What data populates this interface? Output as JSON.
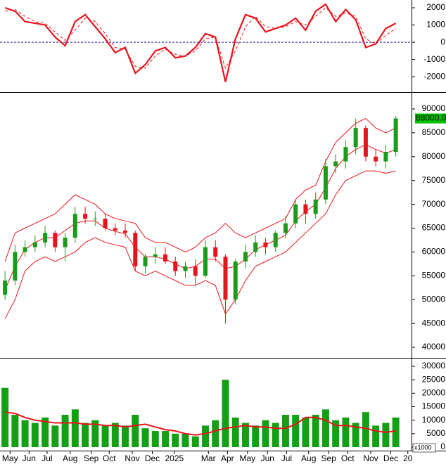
{
  "chart_data": [
    {
      "type": "line",
      "x": [
        0.5,
        1.5,
        2.5,
        3.5,
        4.5,
        5.5,
        6.5,
        7.5,
        8.5,
        9.5,
        10.5,
        11.5,
        12.5,
        13.5,
        14.5,
        15.5,
        16.5,
        17.5,
        18.5,
        19.5,
        20.5,
        21.5,
        22.5,
        23.5,
        24.5,
        25.5,
        26.5,
        27.5,
        28.5,
        29.5,
        30.5,
        31.5,
        32.5,
        33.5,
        34.5,
        35.5,
        36.5,
        37.5,
        38.5,
        39.5
      ],
      "xlim": [
        0,
        41
      ],
      "ylim": [
        -2850,
        2450
      ],
      "yticks": [
        -2000,
        -1000,
        0,
        1000,
        2000
      ],
      "hline": 0,
      "hline_color": "#1f1fb0",
      "series": [
        {
          "name": "MACD",
          "color": "#e8141c",
          "dashed": false,
          "values": [
            2000,
            1800,
            1200,
            1100,
            1000,
            300,
            -200,
            1200,
            1600,
            900,
            200,
            -600,
            -300,
            -1800,
            -1300,
            -500,
            -300,
            -900,
            -800,
            -300,
            500,
            300,
            -2300,
            200,
            1600,
            1400,
            600,
            800,
            1000,
            1400,
            700,
            1800,
            2200,
            1200,
            1900,
            1300,
            -300,
            -100,
            800,
            1100
          ]
        },
        {
          "name": "Signal",
          "color": "#e8141c",
          "dashed": true,
          "values": [
            1800,
            1900,
            1500,
            1200,
            1100,
            600,
            100,
            700,
            1400,
            1200,
            500,
            -300,
            -400,
            -1400,
            -1500,
            -800,
            -400,
            -700,
            -800,
            -500,
            200,
            300,
            -1500,
            -500,
            900,
            1500,
            900,
            800,
            900,
            1200,
            1000,
            1500,
            2000,
            1500,
            1700,
            1500,
            200,
            -100,
            400,
            800
          ]
        }
      ]
    },
    {
      "type": "candlestick",
      "x": [
        0.5,
        1.5,
        2.5,
        3.5,
        4.5,
        5.5,
        6.5,
        7.5,
        8.5,
        9.5,
        10.5,
        11.5,
        12.5,
        13.5,
        14.5,
        15.5,
        16.5,
        17.5,
        18.5,
        19.5,
        20.5,
        21.5,
        22.5,
        23.5,
        24.5,
        25.5,
        26.5,
        27.5,
        28.5,
        29.5,
        30.5,
        31.5,
        32.5,
        33.5,
        34.5,
        35.5,
        36.5,
        37.5,
        38.5,
        39.5
      ],
      "xlim": [
        0,
        41
      ],
      "ylim": [
        37940,
        93240
      ],
      "yticks": [
        40000,
        45000,
        50000,
        55000,
        60000,
        65000,
        70000,
        75000,
        80000,
        85000,
        90000
      ],
      "up_color": "#1a9c1a",
      "down_color": "#e8141c",
      "open": [
        51000,
        54000,
        60000,
        61000,
        62000,
        64000,
        61000,
        63000,
        68000,
        67000,
        67000,
        65000,
        64500,
        64000,
        57000,
        59000,
        59500,
        58000,
        56000,
        57000,
        55000,
        61000,
        59000,
        50000,
        58000,
        60000,
        62000,
        61000,
        64000,
        66000,
        70000,
        68000,
        71000,
        78000,
        79000,
        82000,
        86000,
        80000,
        79000,
        81000
      ],
      "high": [
        56000,
        61500,
        62500,
        63500,
        65500,
        64500,
        64000,
        69500,
        69500,
        68500,
        68000,
        66000,
        66000,
        64500,
        59500,
        61000,
        61000,
        59000,
        58000,
        58500,
        62500,
        62500,
        59500,
        58500,
        61500,
        63500,
        63000,
        64500,
        67500,
        71000,
        71000,
        72500,
        79500,
        80500,
        83500,
        88000,
        86500,
        81500,
        82500,
        88500
      ],
      "low": [
        50000,
        53000,
        59000,
        60000,
        61000,
        60000,
        58000,
        62000,
        66000,
        65500,
        64500,
        63500,
        63000,
        56000,
        55500,
        57500,
        57500,
        55000,
        54500,
        53000,
        54500,
        58000,
        45000,
        49000,
        56500,
        59000,
        59500,
        60000,
        63000,
        65000,
        66000,
        67000,
        70000,
        76500,
        77500,
        80500,
        79000,
        78000,
        77500,
        80000
      ],
      "close": [
        54000,
        60000,
        61000,
        62000,
        64000,
        61000,
        63000,
        68000,
        67000,
        67000,
        65000,
        64500,
        64000,
        57000,
        59000,
        59500,
        58000,
        56000,
        57000,
        55000,
        61000,
        59000,
        50000,
        58000,
        60000,
        62000,
        61000,
        64000,
        66000,
        70000,
        68000,
        71000,
        78000,
        79000,
        82000,
        86000,
        80000,
        79000,
        81000,
        88000
      ],
      "last_price": {
        "value": 88000,
        "label": "88000.00",
        "color": "#00c000"
      },
      "series": [
        {
          "name": "Upper",
          "color": "#e8141c",
          "values": [
            58000,
            64000,
            65000,
            66000,
            67000,
            68000,
            70000,
            72000,
            71000,
            70000,
            68000,
            67000,
            66500,
            66000,
            63000,
            62000,
            62000,
            61000,
            60000,
            61000,
            63000,
            64000,
            66000,
            64000,
            63000,
            64000,
            65000,
            66000,
            67000,
            71000,
            73000,
            74000,
            79000,
            83000,
            85000,
            87000,
            88000,
            86000,
            85000,
            86000
          ]
        },
        {
          "name": "Middle",
          "color": "#e8141c",
          "values": [
            52000,
            57000,
            60500,
            62000,
            63000,
            63000,
            64500,
            66000,
            66500,
            66500,
            65000,
            64300,
            63800,
            61000,
            59000,
            59000,
            58500,
            57500,
            56500,
            57000,
            58500,
            58500,
            56500,
            57000,
            58500,
            60500,
            61500,
            62500,
            63500,
            66500,
            68500,
            70000,
            73500,
            77500,
            80000,
            81500,
            82500,
            81500,
            80700,
            81500
          ]
        },
        {
          "name": "Lower",
          "color": "#e8141c",
          "values": [
            46000,
            50000,
            56000,
            58000,
            59000,
            58000,
            59000,
            60000,
            62000,
            63000,
            62000,
            61500,
            61000,
            56000,
            55000,
            56000,
            55000,
            54000,
            53000,
            53000,
            54000,
            53000,
            47000,
            50000,
            54000,
            57000,
            58000,
            59000,
            60000,
            62000,
            64000,
            66000,
            68000,
            72000,
            75000,
            76000,
            77000,
            77000,
            76500,
            77000
          ]
        }
      ]
    },
    {
      "type": "bar",
      "x": [
        0.5,
        1.5,
        2.5,
        3.5,
        4.5,
        5.5,
        6.5,
        7.5,
        8.5,
        9.5,
        10.5,
        11.5,
        12.5,
        13.5,
        14.5,
        15.5,
        16.5,
        17.5,
        18.5,
        19.5,
        20.5,
        21.5,
        22.5,
        23.5,
        24.5,
        25.5,
        26.5,
        27.5,
        28.5,
        29.5,
        30.5,
        31.5,
        32.5,
        33.5,
        34.5,
        35.5,
        36.5,
        37.5,
        38.5,
        39.5
      ],
      "xlim": [
        0,
        41
      ],
      "ylim": [
        -1040,
        32610
      ],
      "yticks": [
        0,
        5000,
        10000,
        15000,
        20000,
        25000,
        30000
      ],
      "unit_label": "x1000",
      "color": "#14a014",
      "values": [
        22000,
        12000,
        10000,
        9000,
        11000,
        8000,
        12000,
        14000,
        9000,
        10000,
        8000,
        9000,
        8000,
        12000,
        7000,
        6000,
        6000,
        5000,
        5000,
        4000,
        8000,
        10000,
        25000,
        11000,
        9000,
        8000,
        10000,
        9000,
        12000,
        12000,
        11000,
        12000,
        14000,
        10000,
        11000,
        9000,
        13000,
        8000,
        9000,
        11000
      ],
      "series": [
        {
          "name": "Volume MA",
          "color": "#e8141c",
          "values": [
            13000,
            12500,
            11000,
            10000,
            9500,
            9000,
            9000,
            9000,
            8500,
            8500,
            8000,
            8000,
            7500,
            8000,
            8500,
            7500,
            6500,
            6000,
            5000,
            4500,
            5000,
            6000,
            7000,
            7500,
            8000,
            7500,
            7500,
            7000,
            7000,
            8500,
            11000,
            11000,
            10000,
            8000,
            8000,
            7500,
            7000,
            6000,
            5500,
            6000
          ]
        }
      ],
      "xticks": [
        {
          "value": 1.0,
          "label": "May"
        },
        {
          "value": 2.9,
          "label": "Jun"
        },
        {
          "value": 4.7,
          "label": "Jul"
        },
        {
          "value": 7.0,
          "label": "Aug"
        },
        {
          "value": 9.1,
          "label": "Sep"
        },
        {
          "value": 10.9,
          "label": "Oct"
        },
        {
          "value": 13.2,
          "label": "Nov"
        },
        {
          "value": 15.2,
          "label": "Dec"
        },
        {
          "value": 17.4,
          "label": "2025"
        },
        {
          "value": 20.8,
          "label": "Mar"
        },
        {
          "value": 22.7,
          "label": "Apr"
        },
        {
          "value": 24.7,
          "label": "May"
        },
        {
          "value": 26.7,
          "label": "Jun"
        },
        {
          "value": 28.6,
          "label": "Jul"
        },
        {
          "value": 30.8,
          "label": "Aug"
        },
        {
          "value": 32.8,
          "label": "Sep"
        },
        {
          "value": 34.7,
          "label": "Oct"
        },
        {
          "value": 37.0,
          "label": "Nov"
        },
        {
          "value": 39.0,
          "label": "Dec"
        },
        {
          "value": 40.7,
          "label": "20"
        }
      ]
    }
  ]
}
